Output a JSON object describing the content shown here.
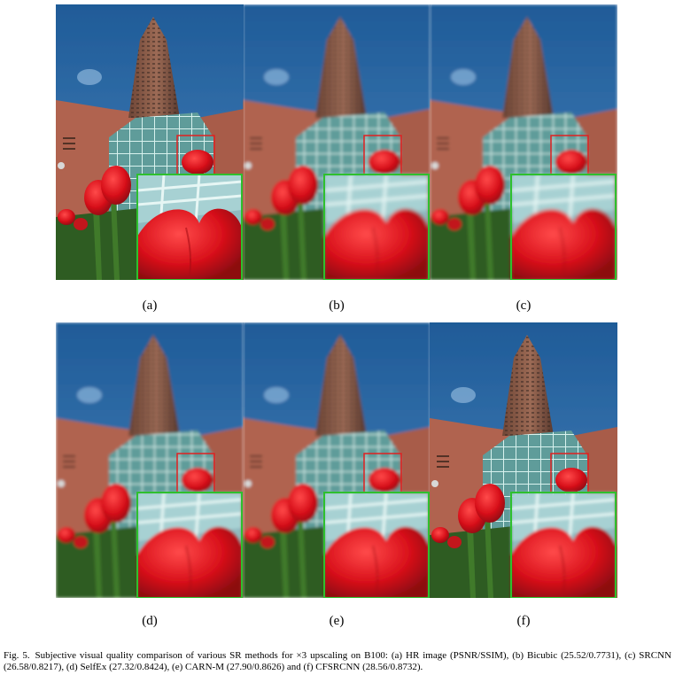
{
  "figure": {
    "panels": [
      {
        "label": "(a)",
        "image": "HR image"
      },
      {
        "label": "(b)",
        "image": "Bicubic"
      },
      {
        "label": "(c)",
        "image": "SRCNN"
      },
      {
        "label": "(d)",
        "image": "SelfEx"
      },
      {
        "label": "(e)",
        "image": "CARN-M"
      },
      {
        "label": "(f)",
        "image": "CFSRCNN"
      }
    ],
    "caption_prefix": "Fig. 5.",
    "caption_text": "Subjective visual quality comparison of various SR methods for ×3 upscaling on B100: (a) HR image (PSNR/SSIM), (b) Bicubic (25.52/0.7731), (c) SRCNN (26.58/0.8217), (d) SelfEx (27.32/0.8424), (e) CARN-M (27.90/0.8626) and (f) CFSRCNN (28.56/0.8732)."
  },
  "colors": {
    "sky": "#2f6aa6",
    "tower": "#8a5a48",
    "brick": "#b56a52",
    "glass": "#7fb9b4",
    "tulip": "#e0141e",
    "stem": "#2e5a22",
    "zoom_box": "#e02020",
    "zoom_border": "#2ec02e"
  }
}
